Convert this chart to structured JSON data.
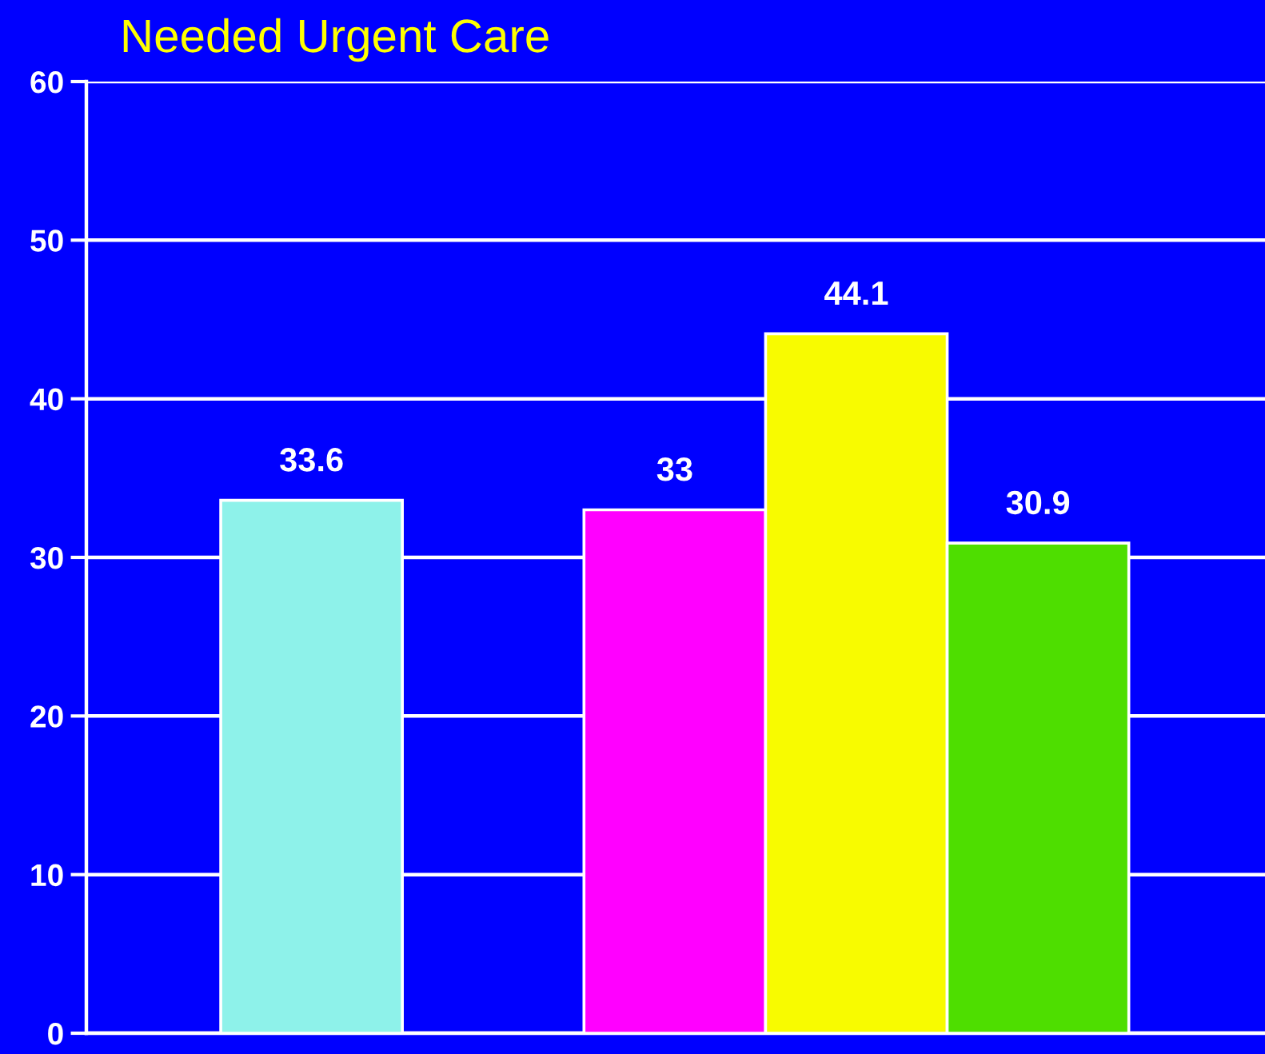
{
  "chart_data": {
    "type": "bar",
    "title": "Needed Urgent Care",
    "categories": [
      null,
      null,
      null,
      null,
      null
    ],
    "values": [
      33.6,
      null,
      33,
      44.1,
      30.9
    ],
    "colors": [
      "#8ef2ea",
      null,
      "#ff00ff",
      "#f8fb00",
      "#4ede00"
    ],
    "ylim": [
      0,
      60
    ],
    "yticks": [
      0,
      10,
      20,
      30,
      40,
      50,
      60
    ],
    "grid": "y",
    "data_labels": true
  }
}
